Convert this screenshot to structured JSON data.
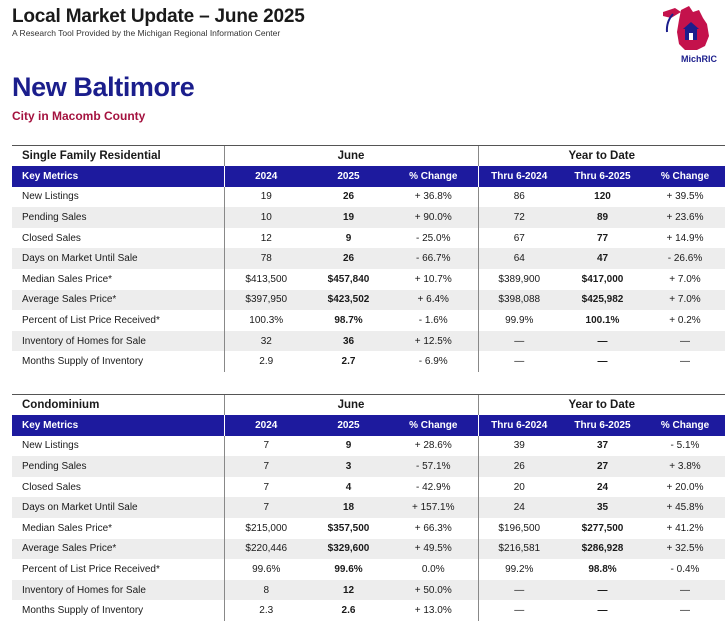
{
  "header": {
    "title": "Local Market Update – June 2025",
    "subtitle": "A Research Tool Provided by the Michigan Regional Information Center"
  },
  "logo": {
    "text": "MichRIC",
    "color": "#c4124c"
  },
  "location": {
    "city": "New Baltimore",
    "county": "City in Macomb County"
  },
  "columns": {
    "key_metrics": "Key Metrics",
    "june": "June",
    "ytd": "Year to Date",
    "y2024": "2024",
    "y2025": "2025",
    "pct": "% Change",
    "thru2024": "Thru 6-2024",
    "thru2025": "Thru 6-2025"
  },
  "sections": [
    {
      "name": "Single Family Residential",
      "rows": [
        {
          "metric": "New Listings",
          "j24": "19",
          "j25": "26",
          "jchg": "+ 36.8%",
          "y24": "86",
          "y25": "120",
          "ychg": "+ 39.5%"
        },
        {
          "metric": "Pending Sales",
          "j24": "10",
          "j25": "19",
          "jchg": "+ 90.0%",
          "y24": "72",
          "y25": "89",
          "ychg": "+ 23.6%"
        },
        {
          "metric": "Closed Sales",
          "j24": "12",
          "j25": "9",
          "jchg": "- 25.0%",
          "y24": "67",
          "y25": "77",
          "ychg": "+ 14.9%"
        },
        {
          "metric": "Days on Market Until Sale",
          "j24": "78",
          "j25": "26",
          "jchg": "- 66.7%",
          "y24": "64",
          "y25": "47",
          "ychg": "- 26.6%"
        },
        {
          "metric": "Median Sales Price*",
          "j24": "$413,500",
          "j25": "$457,840",
          "jchg": "+ 10.7%",
          "y24": "$389,900",
          "y25": "$417,000",
          "ychg": "+ 7.0%"
        },
        {
          "metric": "Average Sales Price*",
          "j24": "$397,950",
          "j25": "$423,502",
          "jchg": "+ 6.4%",
          "y24": "$398,088",
          "y25": "$425,982",
          "ychg": "+ 7.0%"
        },
        {
          "metric": "Percent of List Price Received*",
          "j24": "100.3%",
          "j25": "98.7%",
          "jchg": "- 1.6%",
          "y24": "99.9%",
          "y25": "100.1%",
          "ychg": "+ 0.2%"
        },
        {
          "metric": "Inventory of Homes for Sale",
          "j24": "32",
          "j25": "36",
          "jchg": "+ 12.5%",
          "y24": "—",
          "y25": "—",
          "ychg": "—"
        },
        {
          "metric": "Months Supply of Inventory",
          "j24": "2.9",
          "j25": "2.7",
          "jchg": "- 6.9%",
          "y24": "—",
          "y25": "—",
          "ychg": "—"
        }
      ]
    },
    {
      "name": "Condominium",
      "rows": [
        {
          "metric": "New Listings",
          "j24": "7",
          "j25": "9",
          "jchg": "+ 28.6%",
          "y24": "39",
          "y25": "37",
          "ychg": "- 5.1%"
        },
        {
          "metric": "Pending Sales",
          "j24": "7",
          "j25": "3",
          "jchg": "- 57.1%",
          "y24": "26",
          "y25": "27",
          "ychg": "+ 3.8%"
        },
        {
          "metric": "Closed Sales",
          "j24": "7",
          "j25": "4",
          "jchg": "- 42.9%",
          "y24": "20",
          "y25": "24",
          "ychg": "+ 20.0%"
        },
        {
          "metric": "Days on Market Until Sale",
          "j24": "7",
          "j25": "18",
          "jchg": "+ 157.1%",
          "y24": "24",
          "y25": "35",
          "ychg": "+ 45.8%"
        },
        {
          "metric": "Median Sales Price*",
          "j24": "$215,000",
          "j25": "$357,500",
          "jchg": "+ 66.3%",
          "y24": "$196,500",
          "y25": "$277,500",
          "ychg": "+ 41.2%"
        },
        {
          "metric": "Average Sales Price*",
          "j24": "$220,446",
          "j25": "$329,600",
          "jchg": "+ 49.5%",
          "y24": "$216,581",
          "y25": "$286,928",
          "ychg": "+ 32.5%"
        },
        {
          "metric": "Percent of List Price Received*",
          "j24": "99.6%",
          "j25": "99.6%",
          "jchg": "0.0%",
          "y24": "99.2%",
          "y25": "98.8%",
          "ychg": "- 0.4%"
        },
        {
          "metric": "Inventory of Homes for Sale",
          "j24": "8",
          "j25": "12",
          "jchg": "+ 50.0%",
          "y24": "—",
          "y25": "—",
          "ychg": "—"
        },
        {
          "metric": "Months Supply of Inventory",
          "j24": "2.3",
          "j25": "2.6",
          "jchg": "+ 13.0%",
          "y24": "—",
          "y25": "—",
          "ychg": "—"
        }
      ]
    }
  ]
}
